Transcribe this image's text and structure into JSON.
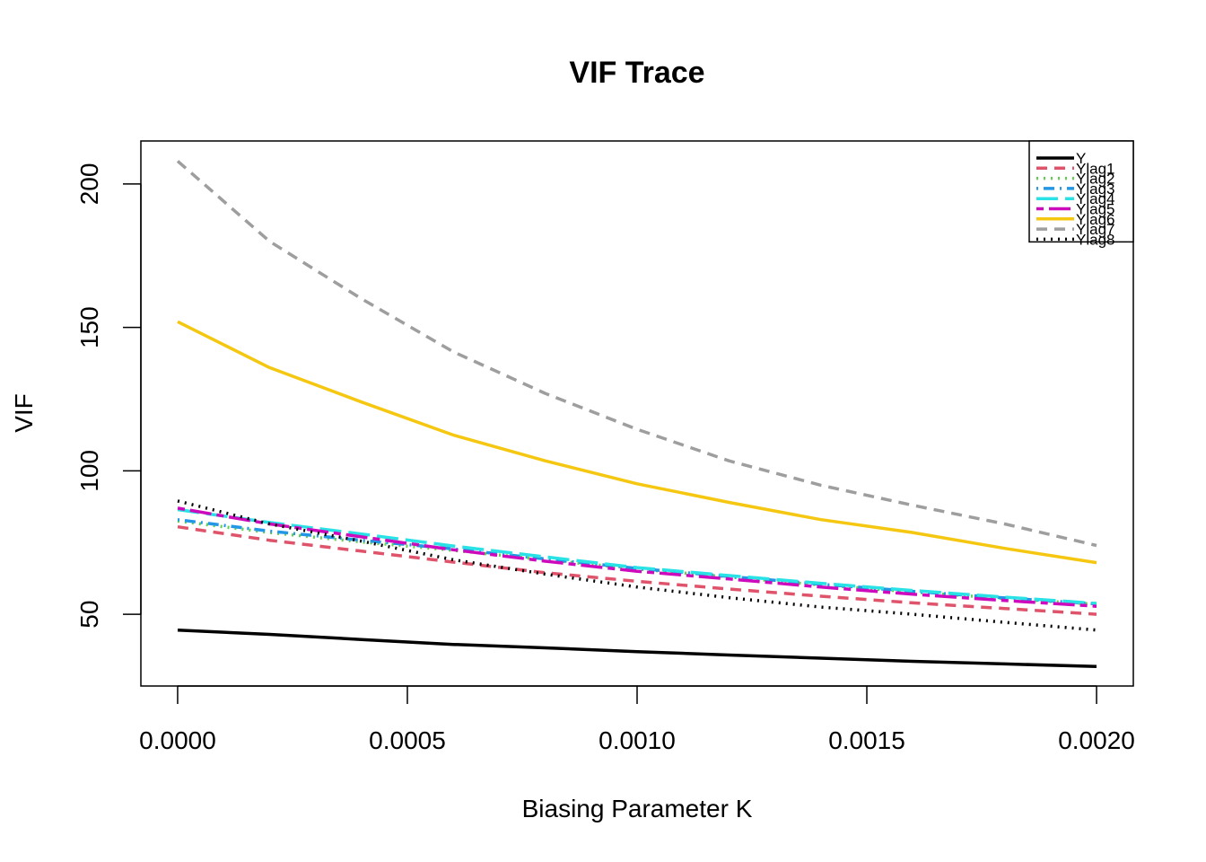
{
  "chart_data": {
    "type": "line",
    "title": "VIF Trace",
    "xlabel": "Biasing Parameter K",
    "ylabel": "VIF",
    "xlim": [
      -8e-05,
      0.00208
    ],
    "ylim": [
      25,
      215
    ],
    "x_ticks": [
      0,
      0.0005,
      0.001,
      0.0015,
      0.002
    ],
    "x_tick_labels": [
      "0.0000",
      "0.0005",
      "0.0010",
      "0.0015",
      "0.0020"
    ],
    "y_ticks": [
      50,
      100,
      150,
      200
    ],
    "y_tick_labels": [
      "50",
      "100",
      "150",
      "200"
    ],
    "grid": false,
    "legend_position": "top-right",
    "x": [
      0,
      0.0002,
      0.0004,
      0.0006,
      0.0008,
      0.001,
      0.0012,
      0.0014,
      0.0016,
      0.0018,
      0.002
    ],
    "series": [
      {
        "name": "Y",
        "color": "#000000",
        "dash": "solid",
        "values": [
          44.5,
          43.0,
          41.2,
          39.5,
          38.3,
          37.0,
          35.8,
          34.7,
          33.6,
          32.7,
          31.8
        ]
      },
      {
        "name": "Ylag1",
        "color": "#DF536B",
        "dash": "dashed",
        "values": [
          80.5,
          75.8,
          72.0,
          68.2,
          64.5,
          61.5,
          58.8,
          56.3,
          54.0,
          52.0,
          50.0
        ]
      },
      {
        "name": "Ylag2",
        "color": "#61D04F",
        "dash": "dotted",
        "values": [
          82.5,
          78.5,
          75.2,
          72.3,
          69.0,
          65.8,
          63.0,
          60.2,
          57.8,
          55.5,
          53.5
        ]
      },
      {
        "name": "Ylag3",
        "color": "#2297E6",
        "dash": "dotdash",
        "values": [
          83.0,
          79.0,
          75.8,
          72.8,
          69.3,
          66.0,
          63.2,
          60.5,
          58.0,
          55.7,
          53.6
        ]
      },
      {
        "name": "Ylag4",
        "color": "#28E2E5",
        "dash": "longdash",
        "values": [
          86.5,
          82.0,
          78.0,
          73.8,
          70.0,
          66.3,
          63.5,
          60.8,
          58.3,
          56.0,
          53.8
        ]
      },
      {
        "name": "Ylag5",
        "color": "#CD0BBC",
        "dash": "twodash",
        "values": [
          87.0,
          81.5,
          77.0,
          72.5,
          68.5,
          65.0,
          62.3,
          59.5,
          57.0,
          54.8,
          52.8
        ]
      },
      {
        "name": "Ylag6",
        "color": "#F5C710",
        "dash": "solid",
        "values": [
          152.0,
          136.0,
          124.0,
          112.5,
          103.5,
          95.5,
          89.0,
          83.0,
          78.5,
          73.0,
          68.0
        ]
      },
      {
        "name": "Ylag7",
        "color": "#9E9E9E",
        "dash": "dashed",
        "values": [
          208.0,
          180.0,
          160.0,
          141.5,
          127.0,
          114.5,
          103.5,
          95.0,
          88.0,
          81.5,
          74.0
        ]
      },
      {
        "name": "Ylag8",
        "color": "#000000",
        "dash": "dotted",
        "values": [
          89.5,
          81.5,
          75.5,
          69.0,
          64.0,
          59.5,
          55.8,
          52.5,
          50.0,
          47.2,
          44.5
        ]
      }
    ]
  }
}
